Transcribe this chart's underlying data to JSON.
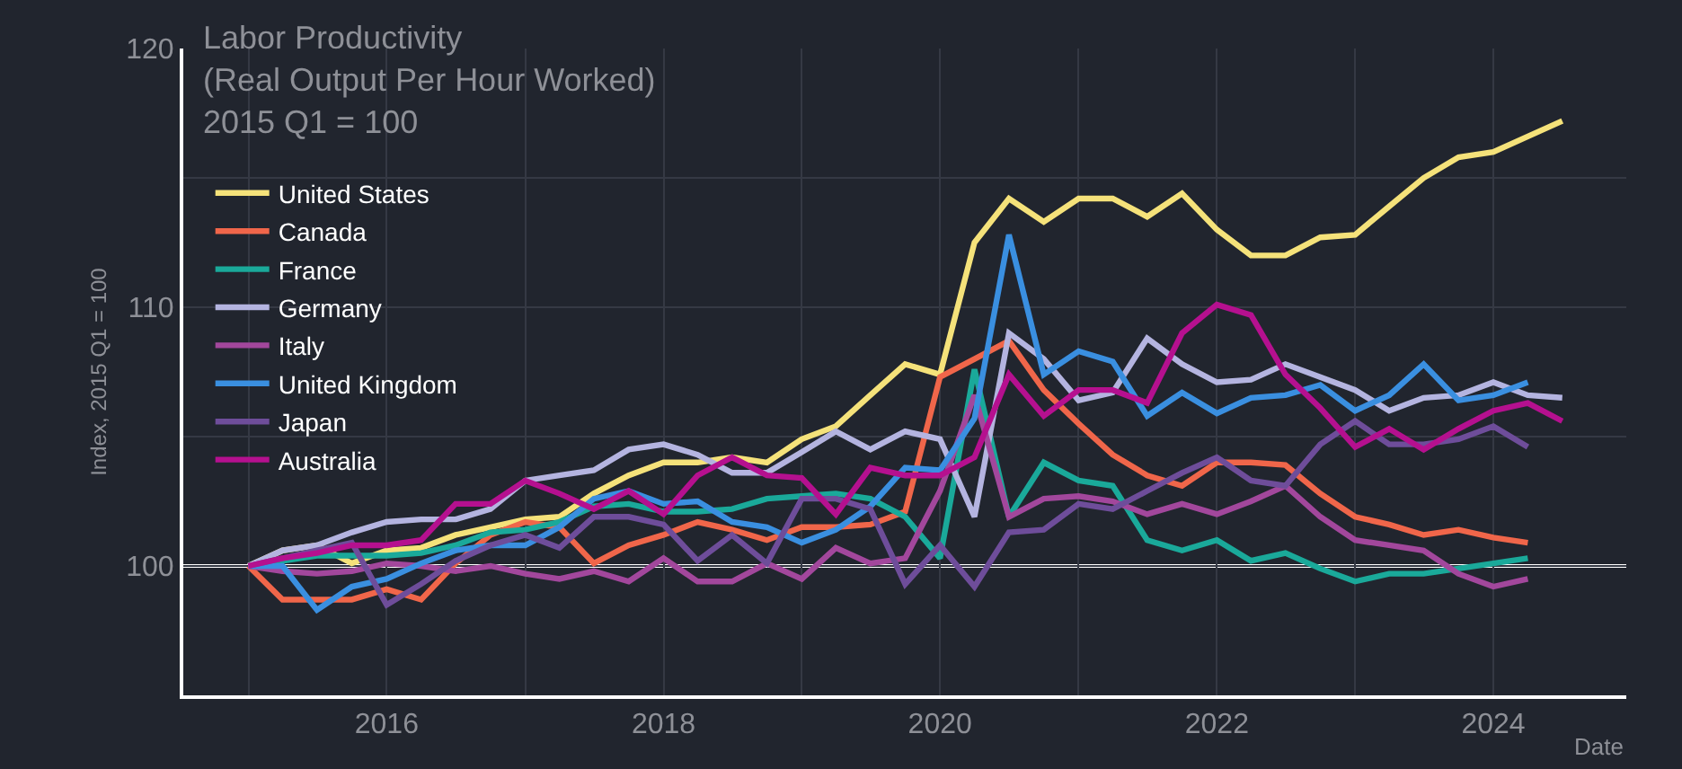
{
  "chart_data": {
    "type": "line",
    "title": "Labor Productivity\n(Real Output Per Hour Worked)\n2015 Q1 = 100",
    "xlabel": "Date",
    "ylabel": "Index, 2015 Q1 = 100",
    "x": [
      "2015-01",
      "2015-04",
      "2015-07",
      "2015-10",
      "2016-01",
      "2016-04",
      "2016-07",
      "2016-10",
      "2017-01",
      "2017-04",
      "2017-07",
      "2017-10",
      "2018-01",
      "2018-04",
      "2018-07",
      "2018-10",
      "2019-01",
      "2019-04",
      "2019-07",
      "2019-10",
      "2020-01",
      "2020-04",
      "2020-07",
      "2020-10",
      "2021-01",
      "2021-04",
      "2021-07",
      "2021-10",
      "2022-01",
      "2022-04",
      "2022-07",
      "2022-10",
      "2023-01",
      "2023-04",
      "2023-07",
      "2023-10",
      "2024-01",
      "2024-04",
      "2024-07"
    ],
    "series": [
      {
        "name": "United States",
        "color": "#f5e27a",
        "values": [
          100,
          100.6,
          100.8,
          100.1,
          100.6,
          100.7,
          101.2,
          101.5,
          101.8,
          101.9,
          102.8,
          103.5,
          104.0,
          104.0,
          104.2,
          104.0,
          104.9,
          105.4,
          106.6,
          107.8,
          107.4,
          112.5,
          114.2,
          113.3,
          114.2,
          114.2,
          113.5,
          114.4,
          113.0,
          112.0,
          112.0,
          112.7,
          112.8,
          113.9,
          115.0,
          115.8,
          116.0,
          116.6,
          117.2
        ]
      },
      {
        "name": "Canada",
        "color": "#f0664a",
        "values": [
          100,
          98.7,
          98.7,
          98.7,
          99.1,
          98.7,
          100.1,
          101.2,
          101.7,
          101.5,
          100.1,
          100.8,
          101.2,
          101.7,
          101.4,
          101.0,
          101.5,
          101.5,
          101.6,
          102.1,
          107.3,
          108.0,
          108.7,
          106.8,
          105.5,
          104.3,
          103.5,
          103.1,
          104.0,
          104.0,
          103.9,
          102.8,
          101.9,
          101.6,
          101.2,
          101.4,
          101.1,
          100.9,
          null
        ]
      },
      {
        "name": "France",
        "color": "#1aa99a",
        "values": [
          100,
          100.2,
          100.4,
          100.4,
          100.4,
          100.5,
          100.8,
          101.3,
          101.4,
          101.7,
          102.3,
          102.4,
          102.1,
          102.1,
          102.2,
          102.6,
          102.7,
          102.8,
          102.6,
          101.9,
          100.3,
          107.6,
          101.9,
          104.0,
          103.3,
          103.1,
          101.0,
          100.6,
          101.0,
          100.2,
          100.5,
          99.9,
          99.4,
          99.7,
          99.7,
          99.9,
          100.1,
          100.3,
          null
        ]
      },
      {
        "name": "Germany",
        "color": "#b4b4e0",
        "values": [
          100,
          100.6,
          100.8,
          101.3,
          101.7,
          101.8,
          101.8,
          102.2,
          103.3,
          103.5,
          103.7,
          104.5,
          104.7,
          104.3,
          103.6,
          103.6,
          104.4,
          105.2,
          104.5,
          105.2,
          104.9,
          101.9,
          109.0,
          108.0,
          106.4,
          106.7,
          108.8,
          107.8,
          107.1,
          107.2,
          107.8,
          107.3,
          106.8,
          106.0,
          106.5,
          106.6,
          107.1,
          106.6,
          106.5
        ]
      },
      {
        "name": "Italy",
        "color": "#a2479c",
        "values": [
          100,
          99.8,
          99.7,
          99.8,
          100.1,
          100.0,
          99.8,
          100.0,
          99.7,
          99.5,
          99.8,
          99.4,
          100.3,
          99.4,
          99.4,
          100.1,
          99.5,
          100.7,
          100.1,
          100.3,
          102.9,
          106.6,
          101.9,
          102.6,
          102.7,
          102.5,
          102.0,
          102.4,
          102.0,
          102.5,
          103.1,
          101.9,
          101.0,
          100.8,
          100.6,
          99.7,
          99.2,
          99.5,
          null
        ]
      },
      {
        "name": "United Kingdom",
        "color": "#3a8fe0",
        "values": [
          100,
          100.0,
          98.3,
          99.2,
          99.5,
          100.1,
          100.6,
          100.8,
          100.8,
          101.5,
          102.6,
          102.9,
          102.4,
          102.5,
          101.7,
          101.5,
          100.9,
          101.4,
          102.3,
          103.8,
          103.7,
          105.7,
          112.8,
          107.4,
          108.3,
          107.9,
          105.8,
          106.7,
          105.9,
          106.5,
          106.6,
          107.0,
          106.0,
          106.6,
          107.8,
          106.4,
          106.6,
          107.1,
          null
        ]
      },
      {
        "name": "Japan",
        "color": "#6e4d9a",
        "values": [
          100,
          100.3,
          100.6,
          100.9,
          98.5,
          99.3,
          100.2,
          100.8,
          101.2,
          100.7,
          101.9,
          101.9,
          101.6,
          100.2,
          101.2,
          100.1,
          102.6,
          102.6,
          102.2,
          99.3,
          100.8,
          99.2,
          101.3,
          101.4,
          102.4,
          102.2,
          102.9,
          103.6,
          104.2,
          103.3,
          103.1,
          104.7,
          105.6,
          104.7,
          104.7,
          104.9,
          105.4,
          104.6,
          null
        ]
      },
      {
        "name": "Australia",
        "color": "#b5108f",
        "values": [
          100,
          100.3,
          100.5,
          100.8,
          100.8,
          101.0,
          102.4,
          102.4,
          103.3,
          102.8,
          102.2,
          102.9,
          102.0,
          103.5,
          104.2,
          103.5,
          103.4,
          102.0,
          103.8,
          103.5,
          103.5,
          104.2,
          107.4,
          105.8,
          106.8,
          106.8,
          106.3,
          109.0,
          110.1,
          109.7,
          107.4,
          106.1,
          104.6,
          105.3,
          104.5,
          105.3,
          106.0,
          106.3,
          105.6
        ]
      }
    ],
    "xlim": [
      "2014-07-13",
      "2024-12-17"
    ],
    "xticks": [
      {
        "value": "2015-01-01",
        "label": null
      },
      {
        "value": "2016-01-01",
        "label": "2016"
      },
      {
        "value": "2017-01-01",
        "label": null
      },
      {
        "value": "2018-01-01",
        "label": "2018"
      },
      {
        "value": "2019-01-01",
        "label": null
      },
      {
        "value": "2020-01-01",
        "label": "2020"
      },
      {
        "value": "2021-01-01",
        "label": null
      },
      {
        "value": "2022-01-01",
        "label": "2022"
      },
      {
        "value": "2023-01-01",
        "label": null
      },
      {
        "value": "2024-01-01",
        "label": "2024"
      }
    ],
    "ylim": [
      95,
      120
    ],
    "yticks": [
      100,
      {
        "value": 105,
        "label": null
      },
      110,
      {
        "value": 115,
        "label": null
      },
      120
    ],
    "ref_lines": [
      {
        "axis": "y",
        "value": 100,
        "color": "#ffffff"
      }
    ],
    "grid": true,
    "legend": "top left",
    "marker": "none",
    "line_style": "solid"
  }
}
